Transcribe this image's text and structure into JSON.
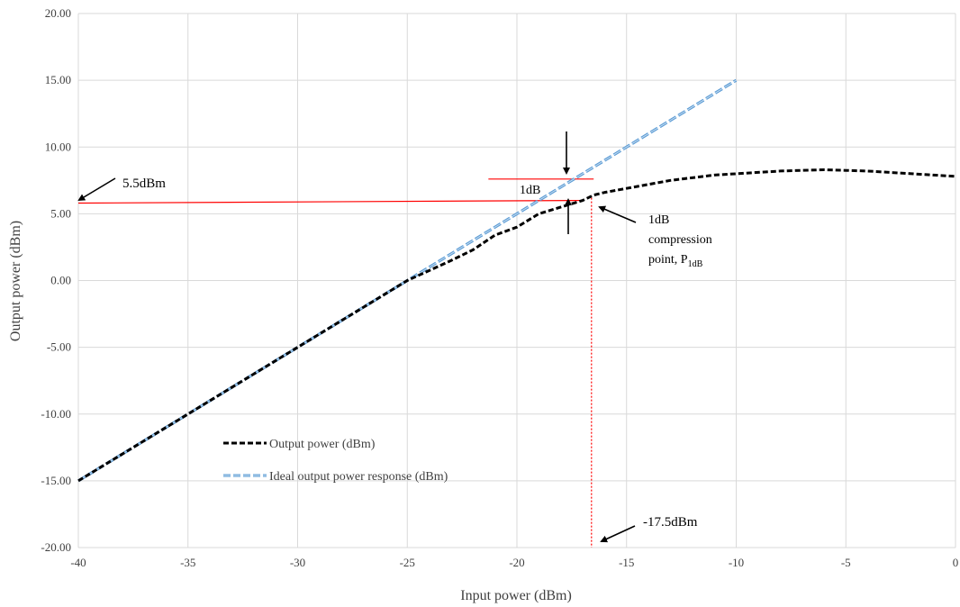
{
  "chart_data": {
    "type": "line",
    "xlabel": "Input power (dBm)",
    "ylabel": "Output power (dBm)",
    "xlim": [
      -40,
      0
    ],
    "ylim": [
      -20,
      20
    ],
    "x_ticks": [
      "-40",
      "-35",
      "-30",
      "-25",
      "-20",
      "-15",
      "-10",
      "-5",
      "0"
    ],
    "y_ticks": [
      "-20.00",
      "-15.00",
      "-10.00",
      "-5.00",
      "0.00",
      "5.00",
      "10.00",
      "15.00",
      "20.00"
    ],
    "grid": true,
    "legend_position": "lower-left",
    "series": [
      {
        "name": "Output power (dBm)",
        "color": "#000000",
        "style": "dashed",
        "x": [
          -40,
          -35,
          -30,
          -25,
          -23,
          -22,
          -21,
          -20,
          -19,
          -18,
          -17,
          -16.5,
          -16,
          -15,
          -14,
          -13,
          -12,
          -11,
          -10,
          -9,
          -8,
          -7,
          -6,
          -5,
          -4,
          -3,
          -2,
          -1,
          0
        ],
        "y": [
          -15,
          -10,
          -5,
          0,
          1.5,
          2.3,
          3.4,
          4.0,
          5.0,
          5.5,
          6.0,
          6.4,
          6.6,
          6.9,
          7.2,
          7.5,
          7.7,
          7.9,
          8.0,
          8.1,
          8.2,
          8.25,
          8.3,
          8.25,
          8.2,
          8.1,
          8.0,
          7.9,
          7.8
        ]
      },
      {
        "name": "Ideal output power response (dBm)",
        "color": "#5b9bd5",
        "style": "dashed",
        "x": [
          -40,
          -10
        ],
        "y": [
          -15,
          15
        ]
      }
    ],
    "annotations": {
      "p1db_level": "5.5dBm",
      "p1db_input": "-17.5dBm",
      "gap_label": "1dB",
      "compression_line1": "1dB",
      "compression_line2": "compression",
      "compression_line3_main": "point, P",
      "compression_line3_sub": "1dB"
    },
    "reference_lines": {
      "level_color": "#ff0000",
      "level_y_start": 5.8,
      "level_y_end": 6.0,
      "level_x_end": -17.0,
      "vertical_x": -16.6,
      "vertical_y_top": 6.2,
      "gap_line_y": 7.6,
      "gap_line_x": [
        -21.3,
        -16.5
      ]
    }
  }
}
